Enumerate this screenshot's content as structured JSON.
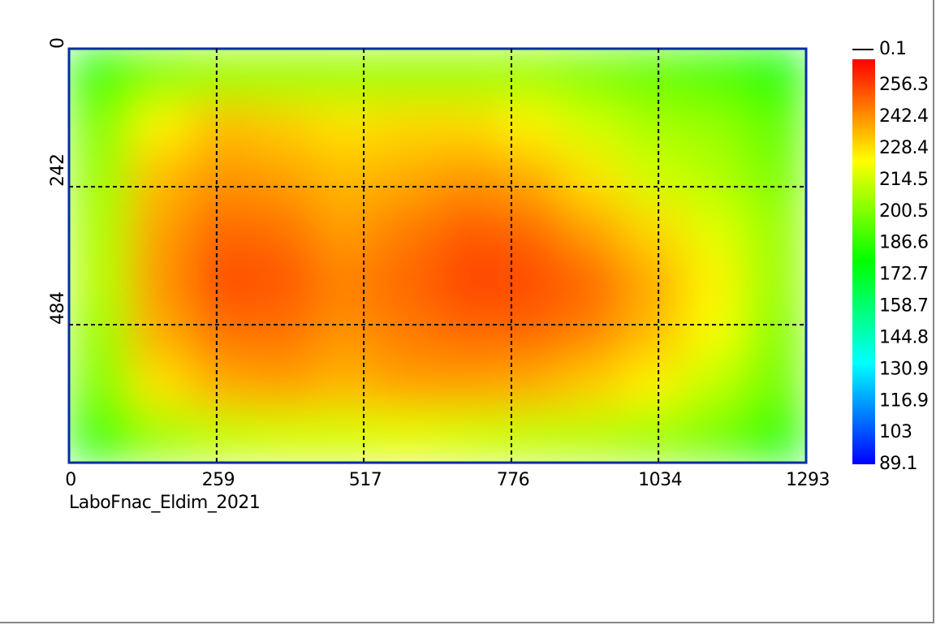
{
  "chart_data": {
    "type": "heatmap",
    "xlim": [
      0,
      1293
    ],
    "ylim": [
      726,
      0
    ],
    "xticks": [
      0,
      259,
      517,
      776,
      1034,
      1293
    ],
    "yticks": [
      0,
      242,
      484
    ],
    "grid": true,
    "footer": "LaboFnac_Eldim_2021",
    "colormap": [
      "#0000ff",
      "#00ffff",
      "#00ff00",
      "#ffff00",
      "#ff0000"
    ],
    "zlim": [
      89.1,
      267.8
    ],
    "colorbar_ticks": [
      256.3,
      242.4,
      228.4,
      214.5,
      200.5,
      186.6,
      172.7,
      158.7,
      144.8,
      130.9,
      116.9,
      103.0,
      89.1
    ],
    "colorbar_marker": "0.1",
    "z": [
      [
        185,
        200,
        205,
        205,
        205,
        205,
        205,
        205,
        200,
        195,
        190,
        180
      ],
      [
        200,
        225,
        235,
        232,
        228,
        230,
        230,
        225,
        215,
        208,
        205,
        195
      ],
      [
        205,
        235,
        242,
        240,
        235,
        238,
        242,
        238,
        228,
        215,
        210,
        200
      ],
      [
        208,
        240,
        250,
        248,
        240,
        246,
        252,
        250,
        240,
        230,
        218,
        205
      ],
      [
        210,
        242,
        255,
        253,
        245,
        250,
        256,
        255,
        250,
        238,
        225,
        205
      ],
      [
        205,
        238,
        248,
        248,
        242,
        246,
        250,
        250,
        245,
        235,
        222,
        202
      ],
      [
        200,
        228,
        238,
        240,
        236,
        240,
        240,
        238,
        232,
        225,
        212,
        198
      ],
      [
        185,
        205,
        212,
        215,
        215,
        218,
        215,
        212,
        210,
        205,
        198,
        182
      ]
    ]
  }
}
